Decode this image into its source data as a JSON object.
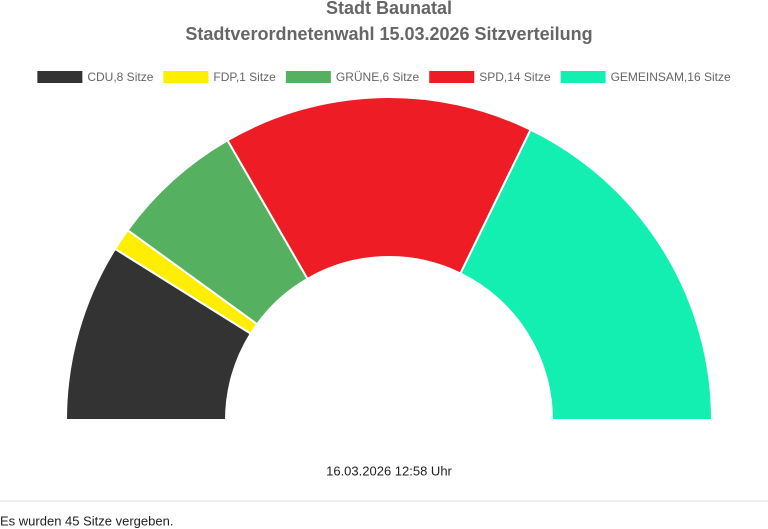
{
  "chart_data": {
    "type": "semicircle",
    "title": "Stadt Baunatal",
    "subtitle": "Stadtverordnetenwahl 15.03.2026 Sitzverteilung",
    "categories": [
      "CDU,8 Sitze",
      "FDP,1 Sitze",
      "GRÜNE,6 Sitze",
      "SPD,14 Sitze",
      "GEMEINSAM,16 Sitze"
    ],
    "values": [
      8,
      1,
      6,
      14,
      16
    ],
    "colors": [
      "#333333",
      "#ffee00",
      "#55b060",
      "#ee1c25",
      "#12efb0"
    ],
    "legend": "top",
    "footer": "16.03.2026 12:58 Uhr"
  },
  "note": "Es wurden 45 Sitze vergeben."
}
